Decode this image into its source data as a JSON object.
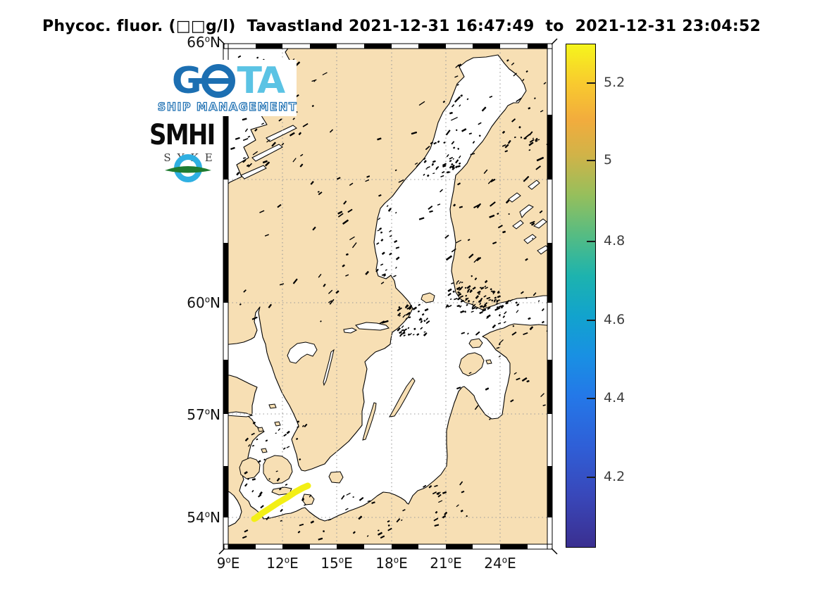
{
  "title": {
    "text": "Phycoc. fluor. (□□g/l)  Tavastland 2021-12-31 16:47:49  to  2021-12-31 23:04:52"
  },
  "map": {
    "region": "Baltic Sea and Scandinavia",
    "lat_ticks": [
      {
        "deg": "66",
        "sup": "o",
        "hemi": "N"
      },
      {
        "deg": "60",
        "sup": "o",
        "hemi": "N"
      },
      {
        "deg": "57",
        "sup": "o",
        "hemi": "N"
      },
      {
        "deg": "54",
        "sup": "o",
        "hemi": "N"
      }
    ],
    "lon_ticks": [
      {
        "deg": "9",
        "sup": "o",
        "hemi": "E"
      },
      {
        "deg": "12",
        "sup": "o",
        "hemi": "E"
      },
      {
        "deg": "15",
        "sup": "o",
        "hemi": "E"
      },
      {
        "deg": "18",
        "sup": "o",
        "hemi": "E"
      },
      {
        "deg": "21",
        "sup": "o",
        "hemi": "E"
      },
      {
        "deg": "24",
        "sup": "o",
        "hemi": "E"
      }
    ]
  },
  "colorbar": {
    "colormap": "parula",
    "ticks": [
      {
        "label": "5.2"
      },
      {
        "label": "5"
      },
      {
        "label": "4.8"
      },
      {
        "label": "4.6"
      },
      {
        "label": "4.4"
      },
      {
        "label": "4.2"
      }
    ]
  },
  "logos": {
    "gota": {
      "g": "G",
      "ta": "TA",
      "subtitle": "SHIP MANAGEMENT"
    },
    "smhi": {
      "text": "SMHI"
    },
    "syke": {
      "text": "SYKE"
    }
  },
  "chart_data": {
    "type": "map",
    "title": "Phycoc. fluor. (□□g/l)  Tavastland 2021-12-31 16:47:49  to  2021-12-31 23:04:52",
    "variable": "Phycocyanin fluorescence",
    "units_shown": "□□g/l (missing-glyph boxes before g/l)",
    "platform": "Tavastland (ship track)",
    "time_start": "2021-12-31 16:47:49",
    "time_end": "2021-12-31 23:04:52",
    "lon_tick_values_degE": [
      9,
      12,
      15,
      18,
      21,
      24
    ],
    "lat_tick_values_degN": [
      66,
      60,
      57,
      54
    ],
    "lon_range_estimated_degE": [
      8.8,
      26.9
    ],
    "lat_range_estimated_degN": [
      53.1,
      66.0
    ],
    "projection": "Mercator-like, dotted graticule every 3 degrees",
    "colorbar": {
      "tick_values": [
        5.2,
        5.0,
        4.8,
        4.6,
        4.4,
        4.2
      ],
      "range_estimated": [
        4.0,
        5.3
      ],
      "colormap": "parula (dark blue bottom to yellow top)"
    },
    "track": {
      "description": "Ship track in SW Baltic (German coast, Kiel Bay toward Ruegen), rendered bright yellow = near top of colour scale (~5.2-5.3)",
      "approx_points_lon_lat": [
        [
          10.5,
          54.0
        ],
        [
          11.1,
          54.2
        ],
        [
          11.7,
          54.4
        ],
        [
          12.3,
          54.6
        ],
        [
          12.9,
          54.8
        ],
        [
          13.4,
          54.9
        ]
      ],
      "approx_value": 5.3
    },
    "land_color": "#f7dfb4",
    "sea_color": "#ffffff"
  }
}
